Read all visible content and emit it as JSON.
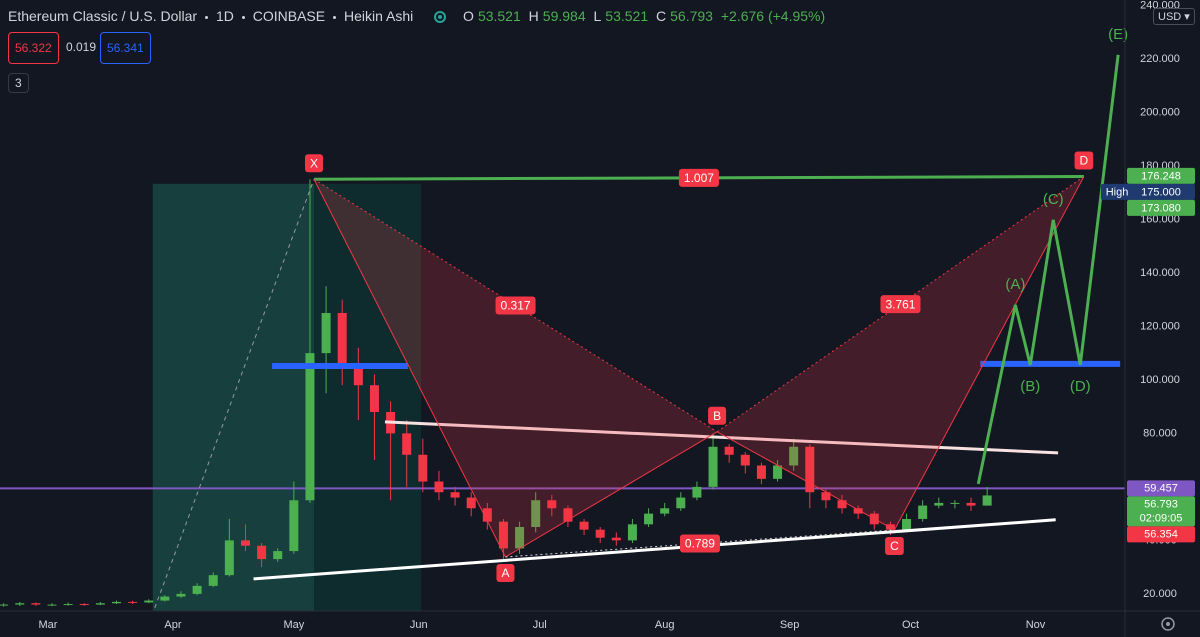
{
  "header": {
    "symbol": "Ethereum Classic / U.S. Dollar",
    "interval": "1D",
    "exchange": "COINBASE",
    "style": "Heikin Ashi",
    "ohlc": [
      [
        "O",
        "53.521"
      ],
      [
        "H",
        "59.984"
      ],
      [
        "L",
        "53.521"
      ],
      [
        "C",
        "56.793"
      ]
    ],
    "change": "+2.676 (+4.95%)",
    "sell": "56.322",
    "spread": "0.019",
    "buy": "56.341",
    "indicators": "3",
    "currency": "USD"
  },
  "chart_data": {
    "type": "candlestick",
    "up_color": "#4caf50",
    "down_color": "#f23645",
    "x": [
      -11,
      -7,
      -3,
      1,
      5,
      9,
      13,
      17,
      21,
      25,
      29,
      33,
      37,
      41,
      45,
      49,
      53,
      57,
      61,
      65,
      69,
      73,
      77,
      81,
      85,
      89,
      93,
      97,
      101,
      105,
      109,
      113,
      117,
      121,
      125,
      129,
      133,
      137,
      141,
      145,
      149,
      153,
      157,
      161,
      165,
      169,
      173,
      177,
      181,
      185,
      189,
      193,
      197,
      201,
      205,
      209,
      213,
      217,
      221,
      225,
      229,
      233
    ],
    "open": [
      15.8,
      16,
      16.5,
      16,
      16,
      16.2,
      16,
      16.5,
      17,
      16.8,
      17.5,
      19,
      20,
      23,
      27,
      40,
      38,
      33,
      36,
      55,
      110,
      125,
      105,
      98,
      88,
      80,
      72,
      62,
      58,
      56,
      52,
      47,
      37,
      45,
      55,
      52,
      47,
      44,
      41,
      40,
      46,
      50,
      52,
      56,
      60,
      75,
      72,
      68,
      63,
      68,
      75,
      58,
      55,
      52,
      50,
      46,
      44,
      48,
      53,
      54,
      54,
      53
    ],
    "high": [
      16.5,
      17,
      16.8,
      16.5,
      16.8,
      16.5,
      17,
      17.5,
      17.4,
      18,
      19.5,
      21,
      24,
      28,
      48,
      46,
      39,
      37,
      62,
      175,
      135,
      130,
      112,
      102,
      92,
      85,
      78,
      66,
      60,
      58,
      54,
      48,
      47,
      58,
      57,
      53,
      48,
      45,
      43,
      48,
      52,
      54,
      58,
      62,
      80,
      76,
      73,
      69,
      70,
      78,
      76,
      59,
      57,
      53,
      51,
      47,
      50,
      55,
      56,
      55,
      56,
      59.984
    ],
    "low": [
      15.2,
      15.5,
      15.5,
      15.4,
      15.6,
      15.5,
      15.8,
      16.2,
      16.2,
      16.5,
      17.2,
      18.5,
      19.5,
      22.5,
      26.5,
      36,
      30,
      32,
      35,
      54,
      95,
      98,
      85,
      70,
      55,
      60,
      58,
      55,
      53,
      49,
      44,
      33,
      35,
      43,
      49,
      45,
      42,
      39,
      38,
      39,
      45,
      49,
      51,
      55,
      59,
      69,
      65,
      61,
      62,
      66,
      52,
      52,
      50,
      48,
      44,
      42,
      43,
      47,
      52,
      52,
      51,
      53
    ],
    "close": [
      16,
      16.5,
      16,
      16,
      16.2,
      16,
      16.5,
      17,
      16.8,
      17.5,
      19,
      20,
      23,
      27,
      40,
      38,
      33,
      36,
      55,
      110,
      125,
      105,
      98,
      88,
      80,
      72,
      62,
      58,
      56,
      52,
      47,
      37,
      45,
      55,
      52,
      47,
      44,
      41,
      40,
      46,
      50,
      52,
      56,
      60,
      75,
      72,
      68,
      63,
      68,
      75,
      58,
      55,
      52,
      50,
      46,
      44,
      48,
      53,
      54,
      54,
      53,
      56.8
    ],
    "xlim": [
      -11.9,
      267.2
    ],
    "ylim": [
      13.6,
      242
    ],
    "xticks": [
      {
        "value": 0,
        "label": "Mar"
      },
      {
        "value": 31,
        "label": "Apr"
      },
      {
        "value": 61,
        "label": "May"
      },
      {
        "value": 92,
        "label": "Jun"
      },
      {
        "value": 122,
        "label": "Jul"
      },
      {
        "value": 153,
        "label": "Aug"
      },
      {
        "value": 184,
        "label": "Sep"
      },
      {
        "value": 214,
        "label": "Oct"
      },
      {
        "value": 245,
        "label": "Nov"
      }
    ],
    "yticks": [
      {
        "value": 20,
        "label": "20.000"
      },
      {
        "value": 40,
        "label": "40.000"
      },
      {
        "value": 60,
        "label": "60.000"
      },
      {
        "value": 80,
        "label": "80.000"
      },
      {
        "value": 100,
        "label": "100.000"
      },
      {
        "value": 120,
        "label": "120.000"
      },
      {
        "value": 140,
        "label": "140.000"
      },
      {
        "value": 160,
        "label": "160.000"
      },
      {
        "value": 180,
        "label": "180.000"
      },
      {
        "value": 200,
        "label": "200.000"
      },
      {
        "value": 220,
        "label": "220.000"
      },
      {
        "value": 240,
        "label": "240.000"
      }
    ],
    "price_tags": [
      {
        "value": 176.248,
        "label": "176.248",
        "color": "#4caf50"
      },
      {
        "value": 175,
        "label": "175.000",
        "tag": "High",
        "color": "#1e3a6e"
      },
      {
        "value": 173.08,
        "label": "173.080",
        "color": "#4caf50"
      },
      {
        "value": 59.457,
        "label": "59.457",
        "color": "#7e57c2",
        "line": true
      },
      {
        "value": 56.793,
        "label": "56.793",
        "countdown": "02:09:05",
        "color": "#4caf50"
      },
      {
        "value": 56.354,
        "label": "56.354",
        "color": "#f23645"
      }
    ],
    "zones": [
      {
        "x": [
          26,
          66
        ],
        "y_top": 173.3,
        "color": "#163f3d"
      },
      {
        "x": [
          66,
          92.6
        ],
        "y_top": 173.3,
        "color": "#0e2c2e"
      }
    ],
    "lines": [
      {
        "color": "#9598a1",
        "style": "dashed",
        "points": [
          [
            26.5,
            14.8
          ],
          [
            66,
            175
          ]
        ]
      },
      {
        "color": "#ffffff",
        "style": "solid",
        "points": [
          [
            51,
            25.6
          ],
          [
            250,
            47.7
          ]
        ]
      },
      {
        "color": "#f8e1e1",
        "style": "solid",
        "points": [
          [
            83.6,
            84.3
          ],
          [
            250.6,
            72.7
          ]
        ]
      },
      {
        "color": "#2962ff",
        "style": "thick",
        "points": [
          [
            55.6,
            105.2
          ],
          [
            89.3,
            105.2
          ]
        ]
      },
      {
        "color": "#2962ff",
        "style": "thick",
        "points": [
          [
            231.3,
            106
          ],
          [
            266,
            106
          ]
        ]
      }
    ],
    "pattern": {
      "color": "#f23645",
      "xd_color": "#4caf50",
      "points": [
        {
          "label": "X",
          "x": 66,
          "y": 175
        },
        {
          "label": "A",
          "x": 113.5,
          "y": 33.8
        },
        {
          "label": "B",
          "x": 166,
          "y": 80.6
        },
        {
          "label": "C",
          "x": 210,
          "y": 43.9
        },
        {
          "label": "D",
          "x": 257,
          "y": 176
        }
      ],
      "ratios": {
        "XD": "1.007",
        "XB": "0.317",
        "BD": "3.761",
        "AC": "0.789"
      }
    },
    "wave": {
      "color": "#4caf50",
      "points": [
        [
          230.8,
          61.1
        ],
        [
          240,
          128
        ],
        [
          243.7,
          105.6
        ],
        [
          249.4,
          159.8
        ],
        [
          256.1,
          105.6
        ],
        [
          265.5,
          221.5
        ]
      ],
      "labels": [
        null,
        "(A)",
        "(B)",
        "(C)",
        "(D)",
        "(E)"
      ]
    }
  }
}
